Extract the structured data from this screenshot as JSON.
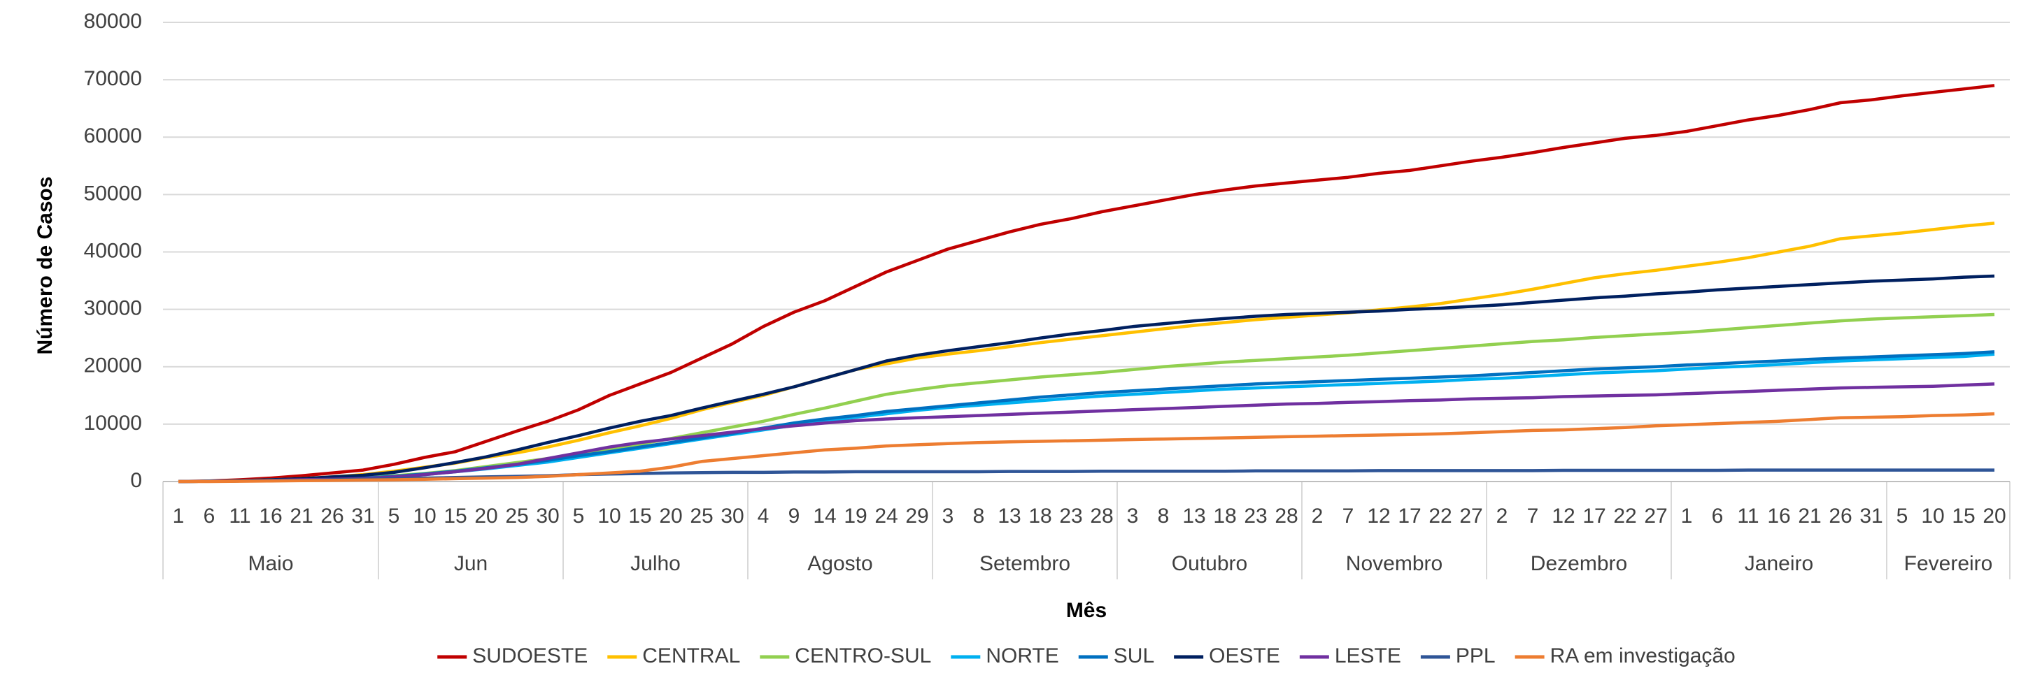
{
  "chart_data": {
    "type": "line",
    "ylabel": "Número de Casos",
    "xlabel": "Mês",
    "ylim": [
      0,
      80000
    ],
    "yticks": [
      0,
      10000,
      20000,
      30000,
      40000,
      50000,
      60000,
      70000,
      80000
    ],
    "grid": true,
    "legend": "bottom",
    "groups": [
      {
        "name": "Maio",
        "categories": [
          "1",
          "6",
          "11",
          "16",
          "21",
          "26",
          "31"
        ]
      },
      {
        "name": "Jun",
        "categories": [
          "5",
          "10",
          "15",
          "20",
          "25",
          "30"
        ]
      },
      {
        "name": "Julho",
        "categories": [
          "5",
          "10",
          "15",
          "20",
          "25",
          "30"
        ]
      },
      {
        "name": "Agosto",
        "categories": [
          "4",
          "9",
          "14",
          "19",
          "24",
          "29"
        ]
      },
      {
        "name": "Setembro",
        "categories": [
          "3",
          "8",
          "13",
          "18",
          "23",
          "28"
        ]
      },
      {
        "name": "Outubro",
        "categories": [
          "3",
          "8",
          "13",
          "18",
          "23",
          "28"
        ]
      },
      {
        "name": "Novembro",
        "categories": [
          "2",
          "7",
          "12",
          "17",
          "22",
          "27"
        ]
      },
      {
        "name": "Dezembro",
        "categories": [
          "2",
          "7",
          "12",
          "17",
          "22",
          "27"
        ]
      },
      {
        "name": "Janeiro",
        "categories": [
          "1",
          "6",
          "11",
          "16",
          "21",
          "26",
          "31"
        ]
      },
      {
        "name": "Fevereiro",
        "categories": [
          "5",
          "10",
          "15",
          "20"
        ]
      }
    ],
    "series": [
      {
        "name": "SUDOESTE",
        "color": "#c00000",
        "values": [
          0,
          100,
          300,
          600,
          1000,
          1500,
          2000,
          3000,
          4200,
          5200,
          7000,
          8800,
          10500,
          12500,
          15000,
          17000,
          19000,
          21500,
          24000,
          27000,
          29500,
          31500,
          34000,
          36500,
          38500,
          40500,
          42000,
          43500,
          44800,
          45800,
          47000,
          48000,
          49000,
          50000,
          50800,
          51500,
          52000,
          52500,
          53000,
          53700,
          54200,
          55000,
          55800,
          56500,
          57300,
          58200,
          59000,
          59800,
          60300,
          61000,
          62000,
          63000,
          63800,
          64800,
          66000,
          66500,
          67200,
          67800,
          68400,
          69000
        ]
      },
      {
        "name": "CENTRAL",
        "color": "#ffc000",
        "values": [
          0,
          50,
          150,
          300,
          500,
          800,
          1200,
          1800,
          2500,
          3200,
          4200,
          5000,
          6000,
          7200,
          8500,
          9700,
          11000,
          12500,
          13800,
          15000,
          16500,
          18000,
          19500,
          20500,
          21500,
          22200,
          22800,
          23500,
          24200,
          24800,
          25400,
          26000,
          26600,
          27200,
          27700,
          28200,
          28600,
          29000,
          29400,
          29900,
          30400,
          31000,
          31800,
          32600,
          33500,
          34500,
          35500,
          36200,
          36800,
          37500,
          38200,
          39000,
          40000,
          41000,
          42300,
          42800,
          43300,
          43900,
          44500,
          45000
        ]
      },
      {
        "name": "CENTRO-SUL",
        "color": "#92d050",
        "values": [
          0,
          50,
          100,
          200,
          300,
          500,
          700,
          1000,
          1400,
          1900,
          2600,
          3300,
          4000,
          4800,
          5600,
          6500,
          7500,
          8500,
          9500,
          10500,
          11700,
          12800,
          14000,
          15200,
          16000,
          16700,
          17200,
          17700,
          18200,
          18600,
          19000,
          19500,
          20000,
          20400,
          20800,
          21100,
          21400,
          21700,
          22000,
          22400,
          22800,
          23200,
          23600,
          24000,
          24400,
          24700,
          25100,
          25400,
          25700,
          26000,
          26400,
          26800,
          27200,
          27600,
          28000,
          28300,
          28500,
          28700,
          28900,
          29100
        ]
      },
      {
        "name": "NORTE",
        "color": "#00b0f0",
        "values": [
          0,
          50,
          100,
          200,
          300,
          400,
          550,
          850,
          1200,
          1700,
          2200,
          2800,
          3400,
          4200,
          5000,
          5800,
          6600,
          7400,
          8200,
          9000,
          9800,
          10500,
          11200,
          11800,
          12400,
          12900,
          13300,
          13700,
          14100,
          14500,
          14900,
          15200,
          15500,
          15800,
          16100,
          16300,
          16500,
          16700,
          16900,
          17100,
          17300,
          17500,
          17800,
          18000,
          18300,
          18600,
          18900,
          19100,
          19300,
          19600,
          19900,
          20100,
          20400,
          20700,
          21000,
          21200,
          21400,
          21600,
          21800,
          22200
        ]
      },
      {
        "name": "SUL",
        "color": "#0070c0",
        "values": [
          0,
          50,
          100,
          200,
          300,
          400,
          600,
          900,
          1300,
          1800,
          2400,
          3000,
          3700,
          4500,
          5200,
          6000,
          6800,
          7600,
          8400,
          9300,
          10200,
          10900,
          11500,
          12200,
          12700,
          13200,
          13700,
          14200,
          14700,
          15100,
          15500,
          15800,
          16100,
          16400,
          16700,
          17000,
          17200,
          17400,
          17600,
          17800,
          18000,
          18200,
          18400,
          18700,
          19000,
          19300,
          19600,
          19800,
          20000,
          20300,
          20500,
          20800,
          21000,
          21300,
          21500,
          21700,
          21900,
          22100,
          22300,
          22600
        ]
      },
      {
        "name": "OESTE",
        "color": "#002060",
        "values": [
          0,
          50,
          150,
          300,
          500,
          800,
          1100,
          1600,
          2400,
          3300,
          4300,
          5500,
          6800,
          8000,
          9300,
          10500,
          11500,
          12800,
          14000,
          15200,
          16500,
          18000,
          19500,
          21000,
          22000,
          22800,
          23500,
          24200,
          25000,
          25700,
          26300,
          27000,
          27500,
          28000,
          28400,
          28800,
          29100,
          29300,
          29500,
          29700,
          30000,
          30200,
          30500,
          30800,
          31200,
          31600,
          32000,
          32300,
          32700,
          33000,
          33400,
          33700,
          34000,
          34300,
          34600,
          34900,
          35100,
          35300,
          35600,
          35800
        ]
      },
      {
        "name": "LESTE",
        "color": "#7030a0",
        "values": [
          0,
          50,
          100,
          200,
          300,
          400,
          500,
          800,
          1200,
          1700,
          2300,
          3000,
          4000,
          5000,
          6000,
          6800,
          7400,
          8000,
          8600,
          9200,
          9700,
          10200,
          10600,
          10900,
          11100,
          11300,
          11500,
          11700,
          11900,
          12100,
          12300,
          12500,
          12700,
          12900,
          13100,
          13300,
          13500,
          13600,
          13800,
          13900,
          14100,
          14200,
          14400,
          14500,
          14600,
          14800,
          14900,
          15000,
          15100,
          15300,
          15500,
          15700,
          15900,
          16100,
          16300,
          16400,
          16500,
          16600,
          16800,
          17000
        ]
      },
      {
        "name": "PPL",
        "color": "#2f5597",
        "values": [
          0,
          50,
          100,
          150,
          200,
          300,
          400,
          500,
          600,
          700,
          800,
          900,
          1000,
          1200,
          1300,
          1400,
          1500,
          1550,
          1600,
          1600,
          1650,
          1650,
          1700,
          1700,
          1700,
          1700,
          1700,
          1750,
          1750,
          1750,
          1800,
          1800,
          1800,
          1800,
          1800,
          1850,
          1850,
          1850,
          1850,
          1900,
          1900,
          1900,
          1900,
          1900,
          1900,
          1950,
          1950,
          1950,
          1950,
          1950,
          1950,
          2000,
          2000,
          2000,
          2000,
          2000,
          2000,
          2000,
          2000,
          2000
        ]
      },
      {
        "name": "RA em investigação",
        "color": "#ed7d31",
        "values": [
          0,
          0,
          50,
          100,
          150,
          200,
          250,
          300,
          400,
          500,
          600,
          700,
          900,
          1200,
          1500,
          1800,
          2500,
          3500,
          4000,
          4500,
          5000,
          5500,
          5800,
          6200,
          6400,
          6600,
          6800,
          6900,
          7000,
          7100,
          7200,
          7300,
          7400,
          7500,
          7600,
          7700,
          7800,
          7900,
          8000,
          8100,
          8200,
          8300,
          8500,
          8700,
          8900,
          9000,
          9200,
          9400,
          9700,
          9900,
          10100,
          10300,
          10500,
          10800,
          11100,
          11200,
          11300,
          11500,
          11600,
          11800
        ]
      }
    ]
  }
}
